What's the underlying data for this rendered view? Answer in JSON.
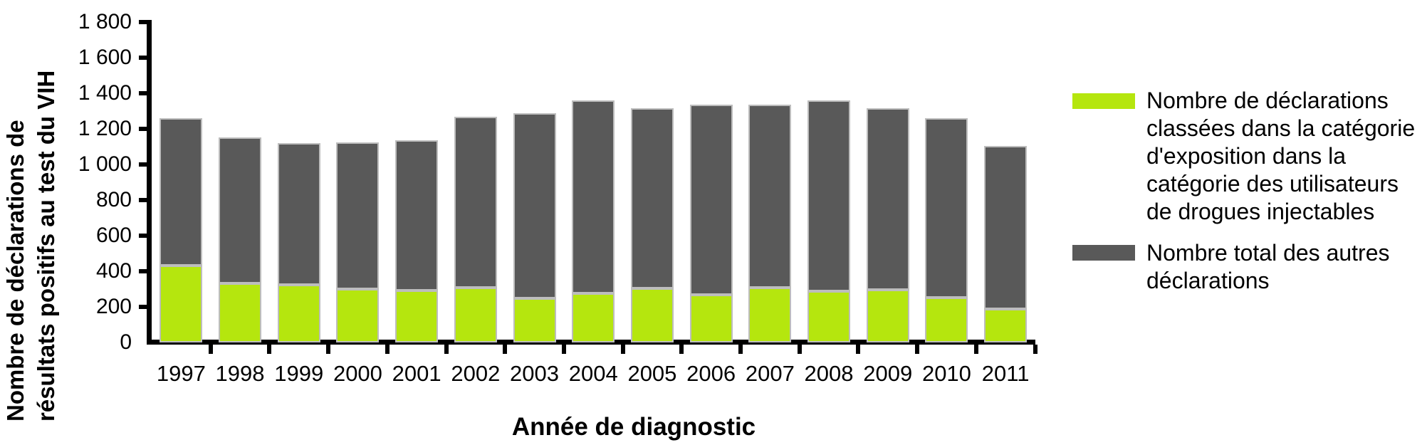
{
  "figure": {
    "background": "#ffffff"
  },
  "y_axis": {
    "title": "Nombre de déclarations de\nrésultats positifs au test du VIH",
    "tick_labels": [
      "1 800",
      "1 600",
      "1 400",
      "1 200",
      "1 000",
      "800",
      "600",
      "400",
      "200",
      "0"
    ],
    "tick_values": [
      1800,
      1600,
      1400,
      1200,
      1000,
      800,
      600,
      400,
      200,
      0
    ]
  },
  "x_axis": {
    "title": "Année de diagnostic"
  },
  "legend": {
    "position": "right",
    "entries": [
      {
        "label": "Nombre de déclarations classées dans la catégorie d'exposition dans la catégorie des utilisateurs de drogues injectables",
        "lines": "Nombre de déclarations\nclassées dans la catégorie\nd'exposition dans la\ncatégorie des utilisateurs\nde drogues injectables",
        "color": "#b5e60e"
      },
      {
        "label": "Nombre total des autres déclarations",
        "lines": "Nombre total des autres\ndéclarations",
        "color": "#595959"
      }
    ]
  },
  "colors": {
    "axis": "#000000",
    "text": "#000000",
    "bar_border": "#bdbdbd",
    "idu_green": "#b5e60e",
    "other_gray": "#595959"
  },
  "chart_data": {
    "type": "bar",
    "stacked": true,
    "grid": false,
    "legend_position": "right",
    "xlabel": "Année de diagnostic",
    "ylabel": "Nombre de déclarations de résultats positifs au test du VIH",
    "ylim": [
      0,
      1800
    ],
    "ytick_step": 200,
    "categories": [
      "1997",
      "1998",
      "1999",
      "2000",
      "2001",
      "2002",
      "2003",
      "2004",
      "2005",
      "2006",
      "2007",
      "2008",
      "2009",
      "2010",
      "2011"
    ],
    "series": [
      {
        "name": "Nombre de déclarations classées dans la catégorie d'exposition dans la catégorie des utilisateurs de drogues injectables",
        "color": "#b5e60e",
        "stack_order": "bottom",
        "values": [
          433,
          331,
          326,
          299,
          291,
          310,
          250,
          276,
          303,
          268,
          310,
          287,
          295,
          252,
          189
        ]
      },
      {
        "name": "Nombre total des autres déclarations",
        "color": "#595959",
        "stack_order": "top",
        "values": [
          829,
          821,
          795,
          827,
          847,
          958,
          1037,
          1086,
          1014,
          1067,
          1028,
          1073,
          1021,
          1008,
          917
        ]
      }
    ],
    "stack_totals": [
      1262,
      1152,
      1121,
      1126,
      1138,
      1268,
      1287,
      1362,
      1317,
      1335,
      1338,
      1360,
      1316,
      1260,
      1106
    ]
  }
}
